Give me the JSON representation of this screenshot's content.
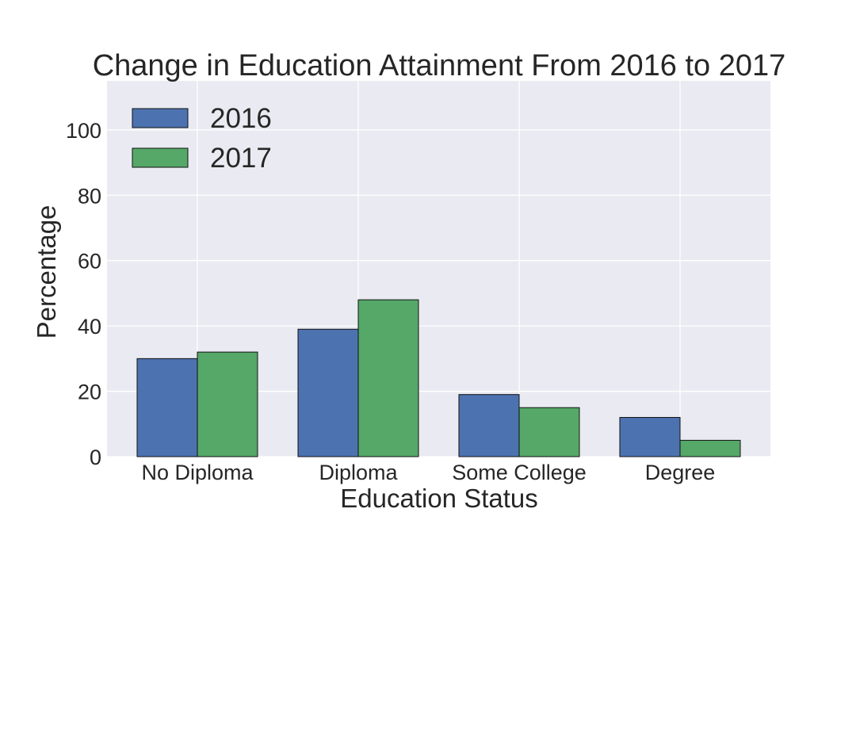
{
  "chart_data": {
    "type": "bar",
    "title": "Change in Education Attainment From 2016 to 2017",
    "xlabel": "Education Status",
    "ylabel": "Percentage",
    "categories": [
      "No Diploma",
      "Diploma",
      "Some College",
      "Degree"
    ],
    "series": [
      {
        "name": "2016",
        "values": [
          30,
          39,
          19,
          12
        ],
        "color": "#4c72b0"
      },
      {
        "name": "2017",
        "values": [
          32,
          48,
          15,
          5
        ],
        "color": "#55a868"
      }
    ],
    "ylim": [
      0,
      115
    ],
    "yticks": [
      "0",
      "20",
      "40",
      "60",
      "80",
      "100"
    ],
    "grid": true,
    "legend_position": "top-left",
    "plot_background": "#eaeaf2",
    "grid_color": "#ffffff"
  }
}
